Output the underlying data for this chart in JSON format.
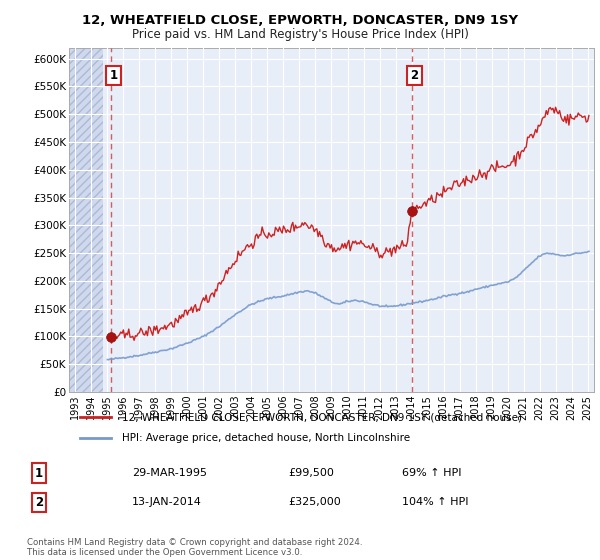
{
  "title1": "12, WHEATFIELD CLOSE, EPWORTH, DONCASTER, DN9 1SY",
  "title2": "Price paid vs. HM Land Registry's House Price Index (HPI)",
  "ylim": [
    0,
    620000
  ],
  "yticks": [
    0,
    50000,
    100000,
    150000,
    200000,
    250000,
    300000,
    350000,
    400000,
    450000,
    500000,
    550000,
    600000
  ],
  "ytick_labels": [
    "£0",
    "£50K",
    "£100K",
    "£150K",
    "£200K",
    "£250K",
    "£300K",
    "£350K",
    "£400K",
    "£450K",
    "£500K",
    "£550K",
    "£600K"
  ],
  "xlim_start": 1992.6,
  "xlim_end": 2025.4,
  "xticks": [
    1993,
    1994,
    1995,
    1996,
    1997,
    1998,
    1999,
    2000,
    2001,
    2002,
    2003,
    2004,
    2005,
    2006,
    2007,
    2008,
    2009,
    2010,
    2011,
    2012,
    2013,
    2014,
    2015,
    2016,
    2017,
    2018,
    2019,
    2020,
    2021,
    2022,
    2023,
    2024,
    2025
  ],
  "legend_line1": "12, WHEATFIELD CLOSE, EPWORTH, DONCASTER, DN9 1SY (detached house)",
  "legend_line2": "HPI: Average price, detached house, North Lincolnshire",
  "sale1_date": 1995.23,
  "sale1_price": 99500,
  "sale2_date": 2014.04,
  "sale2_price": 325000,
  "annotation1_date": "29-MAR-1995",
  "annotation1_price": "£99,500",
  "annotation1_hpi": "69% ↑ HPI",
  "annotation2_date": "13-JAN-2014",
  "annotation2_price": "£325,000",
  "annotation2_hpi": "104% ↑ HPI",
  "footer": "Contains HM Land Registry data © Crown copyright and database right 2024.\nThis data is licensed under the Open Government Licence v3.0.",
  "plot_bg_color": "#e8eef8",
  "grid_color": "#ffffff",
  "line_color_red": "#cc2222",
  "line_color_blue": "#7799cc",
  "marker_color_red": "#aa1111",
  "sale_vline_color": "#cc4444",
  "box_color": "#cc2222"
}
